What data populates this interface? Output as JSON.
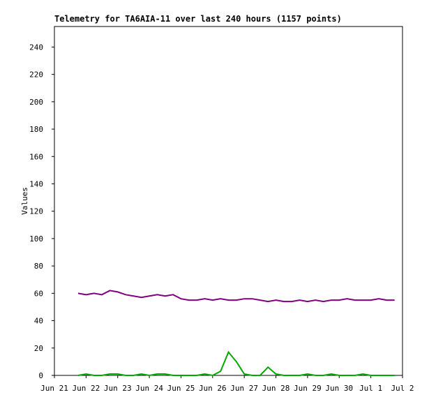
{
  "chart_data": {
    "type": "line",
    "title": "Telemetry for TA6AIA-11 over last 240 hours (1157 points)",
    "y_label": "Values",
    "x": [
      0.75,
      1.0,
      1.25,
      1.5,
      1.75,
      2.0,
      2.25,
      2.5,
      2.75,
      3.0,
      3.25,
      3.5,
      3.75,
      4.0,
      4.25,
      4.5,
      4.75,
      5.0,
      5.25,
      5.5,
      5.75,
      6.0,
      6.25,
      6.5,
      6.75,
      7.0,
      7.25,
      7.5,
      7.75,
      8.0,
      8.25,
      8.5,
      8.75,
      9.0,
      9.25,
      9.5,
      9.75,
      10.0,
      10.25,
      10.5,
      10.75
    ],
    "series": [
      {
        "name": "series-1",
        "color": "#800080",
        "values": [
          60,
          59,
          60,
          59,
          62,
          61,
          59,
          58,
          57,
          58,
          59,
          58,
          59,
          56,
          55,
          55,
          56,
          55,
          56,
          55,
          55,
          56,
          56,
          55,
          54,
          55,
          54,
          54,
          55,
          54,
          55,
          54,
          55,
          55,
          56,
          55,
          55,
          55,
          56,
          55,
          55
        ]
      },
      {
        "name": "series-2",
        "color": "#00aa00",
        "values": [
          0,
          1,
          0,
          0,
          1,
          1,
          0,
          0,
          1,
          0,
          1,
          1,
          0,
          0,
          0,
          0,
          1,
          0,
          3,
          17,
          10,
          1,
          0,
          0,
          6,
          1,
          0,
          0,
          0,
          1,
          0,
          0,
          1,
          0,
          0,
          0,
          1,
          0,
          0,
          0,
          0
        ]
      }
    ],
    "xlim": [
      0,
      11
    ],
    "xticks": [
      {
        "value": 0,
        "label": "Jun 21"
      },
      {
        "value": 1,
        "label": "Jun 22"
      },
      {
        "value": 2,
        "label": "Jun 23"
      },
      {
        "value": 3,
        "label": "Jun 24"
      },
      {
        "value": 4,
        "label": "Jun 25"
      },
      {
        "value": 5,
        "label": "Jun 26"
      },
      {
        "value": 6,
        "label": "Jun 27"
      },
      {
        "value": 7,
        "label": "Jun 28"
      },
      {
        "value": 8,
        "label": "Jun 29"
      },
      {
        "value": 9,
        "label": "Jun 30"
      },
      {
        "value": 10,
        "label": "Jul 1"
      },
      {
        "value": 11,
        "label": "Jul 2"
      }
    ],
    "ylim": [
      0,
      255
    ],
    "yticks": [
      0,
      20,
      40,
      60,
      80,
      100,
      120,
      140,
      160,
      180,
      200,
      220,
      240
    ]
  }
}
